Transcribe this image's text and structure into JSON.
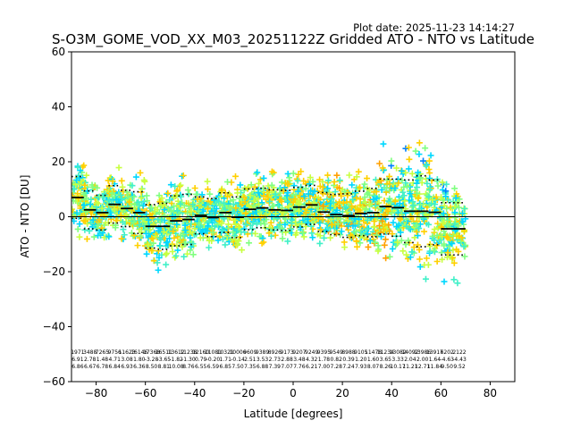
{
  "chart_data": {
    "type": "scatter",
    "plot_date": "Plot date: 2025-11-23 14:14:27",
    "title": "S-O3M_GOME_VOD_XX_M03_20251122Z Gridded ATO - NTO vs Latitude",
    "xlabel": "Latitude [degrees]",
    "ylabel": "ATO - NTO [DU]",
    "xlim": [
      -90,
      90
    ],
    "ylim": [
      -60,
      60
    ],
    "xticks": [
      -80,
      -60,
      -40,
      -20,
      0,
      20,
      40,
      60,
      80
    ],
    "yticks": [
      -60,
      -40,
      -20,
      0,
      20,
      40,
      60
    ],
    "xtick_labels": [
      "−80",
      "−60",
      "−40",
      "−20",
      "0",
      "20",
      "40",
      "60",
      "80"
    ],
    "ytick_labels": [
      "−60",
      "−40",
      "−20",
      "0",
      "20",
      "40",
      "60"
    ],
    "zero_line": 0,
    "marker": "+",
    "colormap_stops": [
      "#0000e6",
      "#0080ff",
      "#00d8ff",
      "#40f0c8",
      "#80ff80",
      "#c8ff40",
      "#ffd000",
      "#ffa000"
    ],
    "bins": [
      {
        "lat": -87.5,
        "mean": 7.0,
        "std": 7.6,
        "n": "1971",
        "l2": "6.91",
        "l3": "6.86"
      },
      {
        "lat": -82.5,
        "mean": 2.5,
        "std": 6.9,
        "n": "3488",
        "l2": "2.78",
        "l3": "6.67"
      },
      {
        "lat": -77.5,
        "mean": 1.5,
        "std": 6.3,
        "n": "7265",
        "l2": "1.48",
        "l3": "6.78"
      },
      {
        "lat": -72.5,
        "mean": 4.5,
        "std": 6.8,
        "n": "9756",
        "l2": "4.71",
        "l3": "6.84"
      },
      {
        "lat": -67.5,
        "mean": 3.0,
        "std": 6.6,
        "n": "11623",
        "l2": "3.08",
        "l3": "6.93"
      },
      {
        "lat": -62.5,
        "mean": 1.5,
        "std": 7.6,
        "n": "16146",
        "l2": "1.80",
        "l3": "6.36"
      },
      {
        "lat": -57.5,
        "mean": -3.5,
        "std": 7.9,
        "n": "17368",
        "l2": "-3.28",
        "l3": "8.50"
      },
      {
        "lat": -52.5,
        "mean": -3.5,
        "std": 8.4,
        "n": "16511",
        "l2": "-3.65",
        "l3": "8.81"
      },
      {
        "lat": -47.5,
        "mean": -1.5,
        "std": 9.1,
        "n": "13612",
        "l2": "-1.82",
        "l3": "10.08"
      },
      {
        "lat": -42.5,
        "mean": -1.0,
        "std": 9.1,
        "n": "11238",
        "l2": "-1.30",
        "l3": "8.76"
      },
      {
        "lat": -37.5,
        "mean": 0.5,
        "std": 6.7,
        "n": "12160",
        "l2": "0.79",
        "l3": "6.55"
      },
      {
        "lat": -32.5,
        "mean": -0.3,
        "std": 6.9,
        "n": "11081",
        "l2": "-0.20",
        "l3": "6.59"
      },
      {
        "lat": -27.5,
        "mean": 1.5,
        "std": 7.2,
        "n": "10321",
        "l2": "1.71",
        "l3": "6.85"
      },
      {
        "lat": -22.5,
        "mean": -0.2,
        "std": 7.4,
        "n": "10006",
        "l2": "-0.14",
        "l3": "7.50"
      },
      {
        "lat": -17.5,
        "mean": 2.7,
        "std": 7.4,
        "n": "9609",
        "l2": "2.51",
        "l3": "7.35"
      },
      {
        "lat": -12.5,
        "mean": 3.2,
        "std": 7.2,
        "n": "9389",
        "l2": "3.53",
        "l3": "6.88"
      },
      {
        "lat": -7.5,
        "mean": 2.5,
        "std": 7.3,
        "n": "8926",
        "l2": "2.73",
        "l3": "7.39"
      },
      {
        "lat": -2.5,
        "mean": 2.3,
        "std": 7.3,
        "n": "9173",
        "l2": "2.88",
        "l3": "7.07"
      },
      {
        "lat": 2.5,
        "mean": 3.5,
        "std": 7.2,
        "n": "9207",
        "l2": "3.48",
        "l3": "7.76"
      },
      {
        "lat": 7.5,
        "mean": 4.3,
        "std": 7.1,
        "n": "9249",
        "l2": "4.32",
        "l3": "6.21"
      },
      {
        "lat": 12.5,
        "mean": 1.7,
        "std": 7.1,
        "n": "9395",
        "l2": "1.78",
        "l3": "7.00"
      },
      {
        "lat": 17.5,
        "mean": 0.8,
        "std": 7.3,
        "n": "9549",
        "l2": "0.82",
        "l3": "7.28"
      },
      {
        "lat": 22.5,
        "mean": 0.4,
        "std": 7.9,
        "n": "8988",
        "l2": "0.39",
        "l3": "7.24"
      },
      {
        "lat": 27.5,
        "mean": 1.2,
        "std": 8.1,
        "n": "9105",
        "l2": "1.20",
        "l3": "7.93"
      },
      {
        "lat": 32.5,
        "mean": 1.5,
        "std": 8.8,
        "n": "11478",
        "l2": "1.60",
        "l3": "8.07"
      },
      {
        "lat": 37.5,
        "mean": 3.7,
        "std": 10.0,
        "n": "11234",
        "l2": "3.65",
        "l3": "8.26"
      },
      {
        "lat": 42.5,
        "mean": 3.3,
        "std": 10.4,
        "n": "13082",
        "l2": "3.33",
        "l3": "10.17"
      },
      {
        "lat": 47.5,
        "mean": 2.0,
        "std": 11.4,
        "n": "14092",
        "l2": "2.04",
        "l3": "11.21"
      },
      {
        "lat": 52.5,
        "mean": 2.0,
        "std": 12.9,
        "n": "13986",
        "l2": "2.00",
        "l3": "12.71"
      },
      {
        "lat": 57.5,
        "mean": 1.6,
        "std": 11.8,
        "n": "13917",
        "l2": "1.64",
        "l3": "11.84"
      },
      {
        "lat": 62.5,
        "mean": -4.4,
        "std": 9.5,
        "n": "6202",
        "l2": "-4.63",
        "l3": "9.50"
      },
      {
        "lat": 67.5,
        "mean": -4.4,
        "std": 9.5,
        "n": "2122",
        "l2": "-4.43",
        "l3": "9.52"
      }
    ]
  }
}
